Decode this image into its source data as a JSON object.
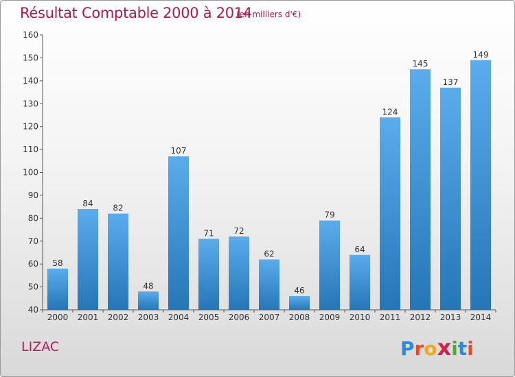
{
  "chart_data": {
    "type": "bar",
    "title": "Résultat Comptable 2000 à 2014",
    "unit": "(en milliers d'€)",
    "categories": [
      "2000",
      "2001",
      "2002",
      "2003",
      "2004",
      "2005",
      "2006",
      "2007",
      "2008",
      "2009",
      "2010",
      "2011",
      "2012",
      "2013",
      "2014"
    ],
    "values": [
      58,
      84,
      82,
      48,
      107,
      71,
      72,
      62,
      46,
      79,
      64,
      124,
      145,
      137,
      149
    ],
    "ylim": [
      40,
      160
    ],
    "yticks": [
      40,
      50,
      60,
      70,
      80,
      90,
      100,
      110,
      120,
      130,
      140,
      150,
      160
    ],
    "xlabel": "",
    "ylabel": "",
    "grid": false,
    "bar_color_light": "#5aacec",
    "bar_color_dark": "#2576b6"
  },
  "commune": "LIZAC",
  "logo": {
    "text": "Proxiti",
    "letters": [
      {
        "ch": "P",
        "color": "#2e8ad8"
      },
      {
        "ch": "r",
        "color": "#e84b2a"
      },
      {
        "ch": "o",
        "color": "#f0a81c"
      },
      {
        "ch": "x",
        "color": "#d4204c"
      },
      {
        "ch": "i",
        "color": "#4cae2e"
      },
      {
        "ch": "t",
        "color": "#2e8ad8"
      },
      {
        "ch": "i",
        "color": "#e84b2a"
      }
    ]
  },
  "colors": {
    "title": "#b3174b",
    "axis": "#555555",
    "text": "#333333"
  }
}
